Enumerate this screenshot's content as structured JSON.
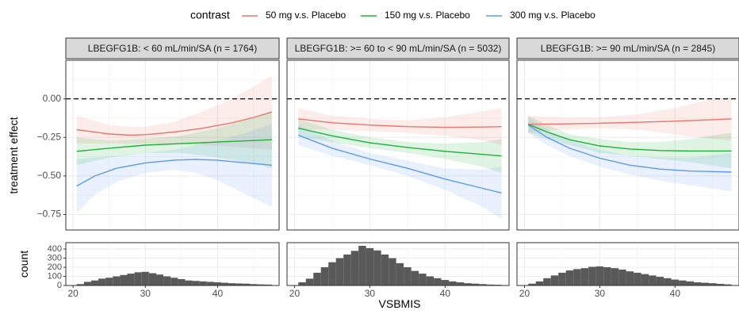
{
  "legend": {
    "title": "contrast",
    "position": "top",
    "entries": [
      {
        "name": "50 mg v.s. Placebo",
        "color": "#E8776D"
      },
      {
        "name": "150 mg v.s. Placebo",
        "color": "#1FB03A"
      },
      {
        "name": "300 mg v.s. Placebo",
        "color": "#5F99EE"
      }
    ]
  },
  "chart_data": {
    "type": "line",
    "xlabel": "VSBMIS",
    "ylabel_top": "treatment effect",
    "ylabel_bottom": "count",
    "x_ticks": [
      20,
      30,
      40
    ],
    "xlim": [
      19,
      48.5
    ],
    "top_yticks": [
      0.0,
      -0.25,
      -0.5,
      -0.75
    ],
    "top_ytick_labels": [
      "0.00",
      "−0.25",
      "−0.50",
      "−0.75"
    ],
    "top_ylim": [
      -0.85,
      0.25
    ],
    "reference_line": 0,
    "bottom_yticks": [
      0,
      100,
      200,
      300,
      400
    ],
    "bottom_ylim": [
      0,
      470
    ],
    "grid": true,
    "panels": [
      {
        "strip": "LBEGFG1B: < 60 mL/min/SA (n = 1764)",
        "series": [
          {
            "name": "50 mg v.s. Placebo",
            "x": [
              20.5,
              25,
              28,
              30,
              34,
              38,
              42,
              45,
              47.5
            ],
            "y": [
              -0.2,
              -0.228,
              -0.236,
              -0.232,
              -0.215,
              -0.19,
              -0.155,
              -0.12,
              -0.085
            ],
            "lower": [
              -0.29,
              -0.29,
              -0.29,
              -0.29,
              -0.29,
              -0.3,
              -0.31,
              -0.32,
              -0.33
            ],
            "upper": [
              -0.11,
              -0.17,
              -0.18,
              -0.18,
              -0.15,
              -0.08,
              0.0,
              0.08,
              0.15
            ]
          },
          {
            "name": "150 mg v.s. Placebo",
            "x": [
              20.5,
              25,
              30,
              35,
              40,
              45,
              47.5
            ],
            "y": [
              -0.34,
              -0.32,
              -0.3,
              -0.29,
              -0.28,
              -0.27,
              -0.265
            ],
            "lower": [
              -0.43,
              -0.38,
              -0.35,
              -0.35,
              -0.38,
              -0.42,
              -0.45
            ],
            "upper": [
              -0.25,
              -0.27,
              -0.26,
              -0.24,
              -0.19,
              -0.12,
              -0.08
            ]
          },
          {
            "name": "300 mg v.s. Placebo",
            "x": [
              20.5,
              23,
              26,
              30,
              34,
              37,
              40,
              44,
              47.5
            ],
            "y": [
              -0.565,
              -0.5,
              -0.45,
              -0.415,
              -0.397,
              -0.393,
              -0.398,
              -0.415,
              -0.43
            ],
            "lower": [
              -0.74,
              -0.62,
              -0.54,
              -0.48,
              -0.46,
              -0.48,
              -0.53,
              -0.62,
              -0.7
            ],
            "upper": [
              -0.39,
              -0.38,
              -0.37,
              -0.35,
              -0.33,
              -0.3,
              -0.27,
              -0.22,
              -0.16
            ]
          }
        ],
        "histogram": {
          "bin_width": 1,
          "bins_start": 20.5,
          "counts": [
            15,
            40,
            55,
            75,
            85,
            100,
            115,
            130,
            145,
            150,
            135,
            120,
            100,
            85,
            70,
            55,
            50,
            45,
            40,
            35,
            30,
            25,
            22,
            20,
            15,
            12,
            10
          ]
        }
      },
      {
        "strip": "LBEGFG1B: >= 60 to < 90 mL/min/SA (n = 5032)",
        "series": [
          {
            "name": "50 mg v.s. Placebo",
            "x": [
              20.5,
              25,
              30,
              35,
              40,
              45,
              47.5
            ],
            "y": [
              -0.13,
              -0.155,
              -0.17,
              -0.18,
              -0.185,
              -0.183,
              -0.18
            ],
            "lower": [
              -0.2,
              -0.2,
              -0.21,
              -0.22,
              -0.24,
              -0.27,
              -0.3
            ],
            "upper": [
              -0.06,
              -0.11,
              -0.13,
              -0.14,
              -0.12,
              -0.08,
              -0.06
            ]
          },
          {
            "name": "150 mg v.s. Placebo",
            "x": [
              20.5,
              25,
              30,
              35,
              40,
              45,
              47.5
            ],
            "y": [
              -0.19,
              -0.24,
              -0.285,
              -0.315,
              -0.34,
              -0.36,
              -0.37
            ],
            "lower": [
              -0.25,
              -0.28,
              -0.32,
              -0.35,
              -0.39,
              -0.44,
              -0.48
            ],
            "upper": [
              -0.13,
              -0.2,
              -0.25,
              -0.28,
              -0.29,
              -0.28,
              -0.26
            ]
          },
          {
            "name": "300 mg v.s. Placebo",
            "x": [
              20.5,
              25,
              30,
              35,
              40,
              45,
              47.5
            ],
            "y": [
              -0.235,
              -0.32,
              -0.39,
              -0.45,
              -0.52,
              -0.58,
              -0.61
            ],
            "lower": [
              -0.3,
              -0.37,
              -0.43,
              -0.5,
              -0.59,
              -0.7,
              -0.78
            ],
            "upper": [
              -0.17,
              -0.27,
              -0.35,
              -0.4,
              -0.45,
              -0.46,
              -0.44
            ]
          }
        ],
        "histogram": {
          "bin_width": 1,
          "bins_start": 20.5,
          "counts": [
            35,
            75,
            140,
            200,
            255,
            300,
            340,
            380,
            435,
            410,
            385,
            340,
            300,
            245,
            200,
            160,
            130,
            100,
            80,
            60,
            45,
            35,
            25,
            20,
            15,
            10,
            8
          ]
        }
      },
      {
        "strip": "LBEGFG1B: >= 90 mL/min/SA (n = 2845)",
        "series": [
          {
            "name": "50 mg v.s. Placebo",
            "x": [
              20.5,
              25,
              30,
              35,
              40,
              45,
              47.5
            ],
            "y": [
              -0.165,
              -0.163,
              -0.158,
              -0.152,
              -0.145,
              -0.135,
              -0.13
            ],
            "lower": [
              -0.22,
              -0.2,
              -0.19,
              -0.2,
              -0.23,
              -0.26,
              -0.27
            ],
            "upper": [
              -0.11,
              -0.12,
              -0.12,
              -0.1,
              -0.06,
              0.0,
              0.01
            ]
          },
          {
            "name": "150 mg v.s. Placebo",
            "x": [
              20.5,
              23,
              26,
              30,
              34,
              38,
              42,
              47.5
            ],
            "y": [
              -0.165,
              -0.215,
              -0.265,
              -0.305,
              -0.325,
              -0.335,
              -0.338,
              -0.338
            ],
            "lower": [
              -0.22,
              -0.26,
              -0.3,
              -0.35,
              -0.37,
              -0.39,
              -0.41,
              -0.45
            ],
            "upper": [
              -0.11,
              -0.17,
              -0.23,
              -0.26,
              -0.28,
              -0.28,
              -0.26,
              -0.22
            ]
          },
          {
            "name": "300 mg v.s. Placebo",
            "x": [
              20.5,
              23,
              26,
              30,
              34,
              38,
              42,
              47.5
            ],
            "y": [
              -0.17,
              -0.25,
              -0.32,
              -0.385,
              -0.43,
              -0.455,
              -0.468,
              -0.475
            ],
            "lower": [
              -0.22,
              -0.3,
              -0.37,
              -0.44,
              -0.49,
              -0.53,
              -0.56,
              -0.6
            ],
            "upper": [
              -0.12,
              -0.2,
              -0.27,
              -0.33,
              -0.37,
              -0.38,
              -0.38,
              -0.35
            ]
          }
        ],
        "histogram": {
          "bin_width": 1,
          "bins_start": 20.5,
          "counts": [
            20,
            45,
            80,
            110,
            140,
            165,
            180,
            190,
            205,
            210,
            200,
            190,
            175,
            155,
            140,
            125,
            110,
            95,
            80,
            65,
            55,
            45,
            35,
            30,
            25,
            18,
            12
          ]
        }
      }
    ]
  }
}
